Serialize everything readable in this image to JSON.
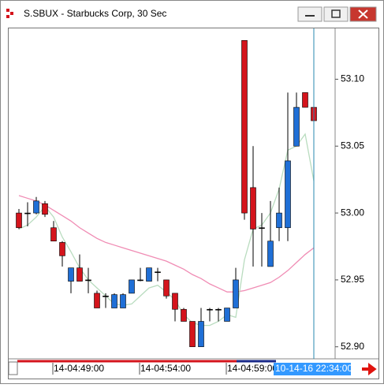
{
  "chart_data": {
    "type": "candlestick",
    "title": "S.SBUX - Starbucks Corp, 30 Sec",
    "categories": [
      null,
      null,
      null,
      null,
      "14-04:49:00",
      null,
      null,
      null,
      null,
      null,
      null,
      null,
      null,
      null,
      "14-04:54:00",
      null,
      null,
      null,
      null,
      null,
      null,
      null,
      null,
      null,
      "14-04:59:00",
      null,
      null,
      null,
      null,
      null,
      null,
      null,
      null,
      null,
      null
    ],
    "open": [
      53.0,
      53.0,
      53.0,
      53.007,
      52.989,
      52.978,
      52.949,
      52.959,
      52.95,
      52.94,
      52.938,
      52.929,
      52.929,
      52.94,
      52.95,
      52.949,
      52.956,
      52.95,
      52.94,
      52.928,
      52.919,
      52.9,
      52.928,
      52.928,
      52.919,
      52.929,
      53.129,
      53.019,
      52.989,
      52.96,
      52.989,
      52.989,
      53.05,
      53.09,
      53.079
    ],
    "high": [
      53.003,
      53.008,
      53.012,
      53.009,
      52.994,
      52.979,
      52.959,
      52.969,
      52.959,
      52.942,
      52.94,
      52.94,
      52.94,
      52.95,
      52.959,
      52.959,
      52.959,
      52.95,
      52.94,
      52.929,
      52.919,
      52.929,
      52.929,
      52.929,
      52.929,
      52.959,
      53.129,
      53.05,
      53.0,
      53.009,
      53.019,
      53.09,
      53.09,
      53.09,
      53.1
    ],
    "low": [
      52.988,
      52.99,
      52.999,
      52.997,
      52.979,
      52.96,
      52.94,
      52.949,
      52.94,
      52.929,
      52.929,
      52.929,
      52.929,
      52.94,
      52.949,
      52.949,
      52.949,
      52.936,
      52.919,
      52.919,
      52.9,
      52.9,
      52.919,
      52.919,
      52.919,
      52.929,
      52.995,
      52.96,
      52.96,
      52.96,
      52.979,
      52.979,
      53.05,
      53.079,
      53.069
    ],
    "close": [
      52.989,
      53.0,
      53.009,
      52.999,
      52.979,
      52.968,
      52.959,
      52.949,
      52.95,
      52.929,
      52.938,
      52.939,
      52.939,
      52.95,
      52.95,
      52.959,
      52.956,
      52.938,
      52.928,
      52.919,
      52.9,
      52.919,
      52.928,
      52.928,
      52.929,
      52.95,
      53.0,
      52.988,
      52.989,
      52.979,
      53.0,
      53.039,
      53.079,
      53.079,
      53.069
    ],
    "up_color": "#1f6fd6",
    "down_color": "#d4141c",
    "series": [
      {
        "color": "#f08cb4",
        "values": [
          53.013,
          53.011,
          53.009,
          53.006,
          53.002,
          52.998,
          52.994,
          52.989,
          52.985,
          52.981,
          52.978,
          52.976,
          52.974,
          52.972,
          52.97,
          52.968,
          52.966,
          52.964,
          52.961,
          52.958,
          52.954,
          52.951,
          52.947,
          52.944,
          52.941,
          52.941,
          52.942,
          52.944,
          52.946,
          52.948,
          52.952,
          52.957,
          52.963,
          52.969,
          52.974
        ]
      },
      {
        "color": "#b9dcbf",
        "values": [
          52.988,
          52.991,
          52.997,
          53.005,
          52.997,
          52.982,
          52.971,
          52.959,
          52.95,
          52.944,
          52.938,
          52.932,
          52.931,
          52.932,
          52.938,
          52.944,
          52.946,
          52.941,
          52.935,
          52.924,
          52.918,
          52.916,
          52.916,
          52.919,
          52.924,
          52.922,
          52.965,
          52.988,
          52.991,
          53.0,
          53.018,
          53.047,
          53.05,
          53.059,
          53.024
        ]
      }
    ],
    "ylim": [
      52.891,
      53.138
    ],
    "yticks": [
      {
        "value": 52.9,
        "label": "52.90"
      },
      52.95,
      {
        "value": 53.0,
        "label": "53.00"
      },
      53.05,
      {
        "value": 53.1,
        "label": "53.10"
      }
    ],
    "cursor_label": "10-14-16 22:34:00"
  }
}
